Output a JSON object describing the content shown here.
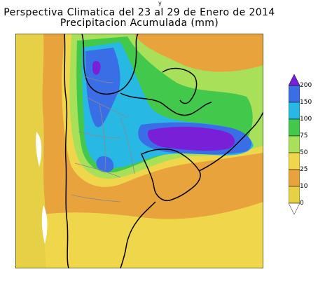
{
  "stray_mark": "y",
  "title": {
    "line1": "Perspectiva Climatica del 23 al 29 de Enero de 2014",
    "line2": "Precipitacion Acumulada (mm)"
  },
  "legend": {
    "levels": [
      "200",
      "150",
      "100",
      "75",
      "50",
      "25",
      "10",
      "0"
    ],
    "colors": {
      "c0": "#e6d046",
      "c10": "#e8a33c",
      "c25": "#f0d64a",
      "c50": "#a8e05a",
      "c75": "#42c84a",
      "c100": "#28b8e4",
      "c150": "#3a6ee6",
      "c200": "#7a1fd8"
    }
  }
}
